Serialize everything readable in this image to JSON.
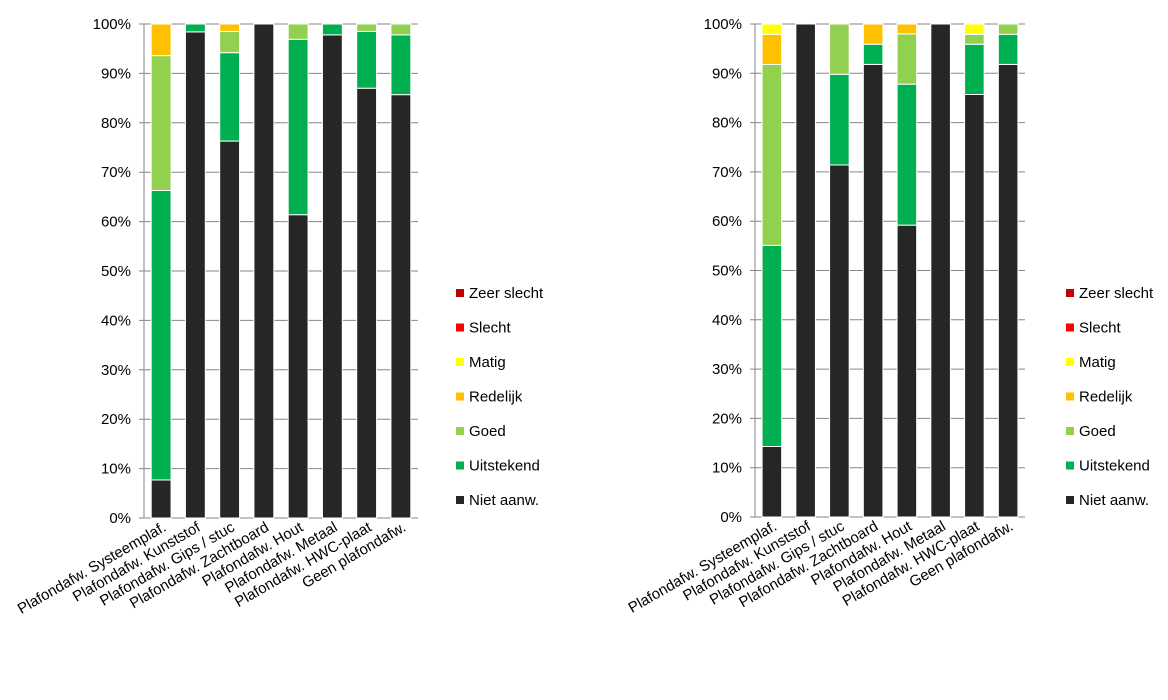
{
  "chart_data": [
    {
      "type": "bar",
      "stacked": true,
      "percent": true,
      "categories": [
        "Plafondafw. Systeemplaf.",
        "Plafondafw. Kunststof",
        "Plafondafw. Gips / stuc",
        "Plafondafw. Zachtboard",
        "Plafondafw. Hout",
        "Plafondafw. Metaal",
        "Plafondafw. HWC-plaat",
        "Geen plafondafw."
      ],
      "y_ticks": [
        "0%",
        "10%",
        "20%",
        "30%",
        "40%",
        "50%",
        "60%",
        "70%",
        "80%",
        "90%",
        "100%"
      ],
      "ylim": [
        0,
        100
      ],
      "grid": true,
      "legend_position": "right",
      "legend": [
        "Zeer slecht",
        "Slecht",
        "Matig",
        "Redelijk",
        "Goed",
        "Uitstekend",
        "Niet aanw."
      ],
      "series": [
        {
          "name": "Niet aanw.",
          "color": "#262626",
          "values": [
            7.7,
            98.4,
            76.3,
            100,
            61.4,
            97.8,
            87.0,
            85.7
          ]
        },
        {
          "name": "Uitstekend",
          "color": "#00b050",
          "values": [
            58.6,
            1.6,
            17.9,
            0,
            35.5,
            2.2,
            11.5,
            12.1
          ]
        },
        {
          "name": "Goed",
          "color": "#92d050",
          "values": [
            27.3,
            0,
            4.3,
            0,
            3.1,
            0,
            1.5,
            2.2
          ]
        },
        {
          "name": "Redelijk",
          "color": "#ffc000",
          "values": [
            6.4,
            0,
            1.5,
            0,
            0,
            0,
            0,
            0
          ]
        },
        {
          "name": "Matig",
          "color": "#ffff00",
          "values": [
            0,
            0,
            0,
            0,
            0,
            0,
            0,
            0
          ]
        },
        {
          "name": "Slecht",
          "color": "#ff0000",
          "values": [
            0,
            0,
            0,
            0,
            0,
            0,
            0,
            0
          ]
        },
        {
          "name": "Zeer slecht",
          "color": "#c00000",
          "values": [
            0,
            0,
            0,
            0,
            0,
            0,
            0,
            0
          ]
        }
      ]
    },
    {
      "type": "bar",
      "stacked": true,
      "percent": true,
      "categories": [
        "Plafondafw. Systeemplaf.",
        "Plafondafw. Kunststof",
        "Plafondafw. Gips / stuc",
        "Plafondafw. Zachtboard",
        "Plafondafw. Hout",
        "Plafondafw. Metaal",
        "Plafondafw. HWC-plaat",
        "Geen plafondafw."
      ],
      "y_ticks": [
        "0%",
        "10%",
        "20%",
        "30%",
        "40%",
        "50%",
        "60%",
        "70%",
        "80%",
        "90%",
        "100%"
      ],
      "ylim": [
        0,
        100
      ],
      "grid": true,
      "legend_position": "right",
      "legend": [
        "Zeer slecht",
        "Slecht",
        "Matig",
        "Redelijk",
        "Goed",
        "Uitstekend",
        "Niet aanw."
      ],
      "series": [
        {
          "name": "Niet aanw.",
          "color": "#262626",
          "values": [
            14.3,
            100,
            71.4,
            91.8,
            59.2,
            100,
            85.7,
            91.8
          ]
        },
        {
          "name": "Uitstekend",
          "color": "#00b050",
          "values": [
            40.8,
            0,
            18.4,
            4.1,
            28.6,
            0,
            10.2,
            6.1
          ]
        },
        {
          "name": "Goed",
          "color": "#92d050",
          "values": [
            36.7,
            0,
            10.2,
            0,
            10.2,
            0,
            2.0,
            2.1
          ]
        },
        {
          "name": "Redelijk",
          "color": "#ffc000",
          "values": [
            6.1,
            0,
            0,
            4.1,
            2.0,
            0,
            0,
            0
          ]
        },
        {
          "name": "Matig",
          "color": "#ffff00",
          "values": [
            2.1,
            0,
            0,
            0,
            0,
            0,
            2.1,
            0
          ]
        },
        {
          "name": "Slecht",
          "color": "#ff0000",
          "values": [
            0,
            0,
            0,
            0,
            0,
            0,
            0,
            0
          ]
        },
        {
          "name": "Zeer slecht",
          "color": "#c00000",
          "values": [
            0,
            0,
            0,
            0,
            0,
            0,
            0,
            0
          ]
        }
      ]
    }
  ]
}
